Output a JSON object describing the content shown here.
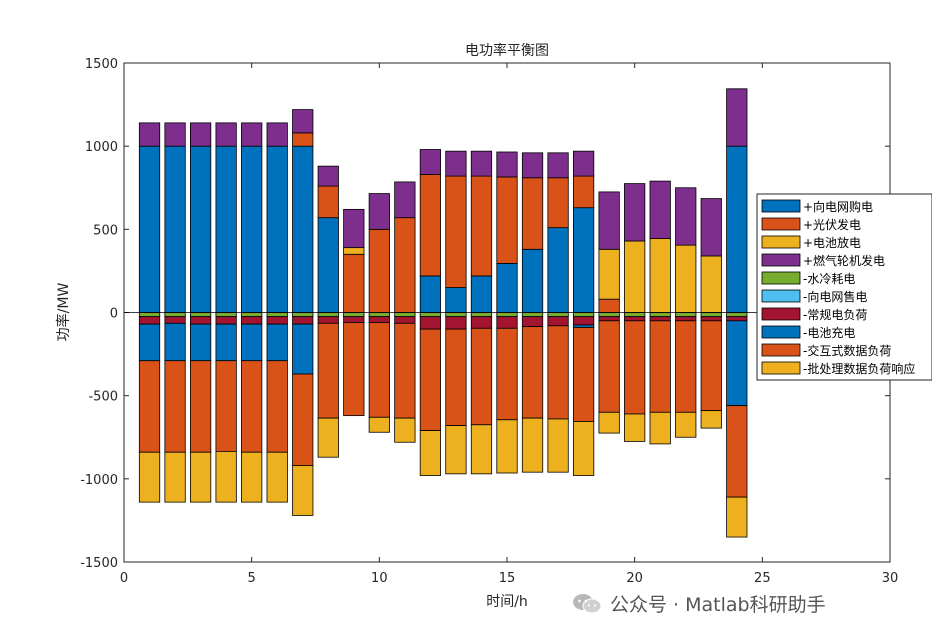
{
  "chart_data": {
    "type": "bar",
    "stacked": true,
    "title": "电功率平衡图",
    "xlabel": "时间/h",
    "ylabel": "功率/MW",
    "xlim": [
      0,
      30
    ],
    "ylim": [
      -1500,
      1500
    ],
    "xticks": [
      0,
      5,
      10,
      15,
      20,
      25,
      30
    ],
    "yticks": [
      -1500,
      -1000,
      -500,
      0,
      500,
      1000,
      1500
    ],
    "x": [
      1,
      2,
      3,
      4,
      5,
      6,
      7,
      8,
      9,
      10,
      11,
      12,
      13,
      14,
      15,
      16,
      17,
      18,
      19,
      20,
      21,
      22,
      23,
      24
    ],
    "legend_position": "right",
    "series": [
      {
        "name": "+向电网购电",
        "color": "#0072BD",
        "values": [
          1000,
          1000,
          1000,
          1000,
          1000,
          1000,
          1000,
          570,
          0,
          0,
          0,
          220,
          150,
          220,
          295,
          380,
          510,
          630,
          0,
          0,
          0,
          0,
          0,
          1000
        ]
      },
      {
        "name": "+光伏发电",
        "color": "#D95319",
        "values": [
          0,
          0,
          0,
          0,
          0,
          0,
          80,
          190,
          350,
          500,
          570,
          610,
          670,
          600,
          520,
          430,
          300,
          190,
          80,
          0,
          0,
          0,
          0,
          0
        ]
      },
      {
        "name": "+电池放电",
        "color": "#EDB120",
        "values": [
          0,
          0,
          0,
          0,
          0,
          0,
          0,
          0,
          40,
          0,
          0,
          0,
          0,
          0,
          0,
          0,
          0,
          0,
          300,
          430,
          445,
          405,
          340,
          0
        ]
      },
      {
        "name": "+燃气轮机发电",
        "color": "#7E2F8E",
        "values": [
          140,
          140,
          140,
          140,
          140,
          140,
          140,
          120,
          230,
          215,
          215,
          150,
          150,
          150,
          150,
          150,
          150,
          150,
          345,
          345,
          345,
          345,
          345,
          345
        ]
      },
      {
        "name": "-水冷耗电",
        "color": "#77AC30",
        "values": [
          -25,
          -25,
          -25,
          -25,
          -25,
          -25,
          -25,
          -25,
          -25,
          -25,
          -25,
          -25,
          -25,
          -25,
          -25,
          -25,
          -25,
          -25,
          -25,
          -25,
          -25,
          -25,
          -25,
          -25
        ]
      },
      {
        "name": "-向电网售电",
        "color": "#4DBEEE",
        "values": [
          0,
          0,
          0,
          0,
          0,
          0,
          0,
          0,
          0,
          0,
          0,
          0,
          0,
          0,
          0,
          0,
          0,
          0,
          0,
          0,
          0,
          0,
          0,
          0
        ]
      },
      {
        "name": "-常规电负荷",
        "color": "#A2142F",
        "values": [
          -45,
          -40,
          -45,
          -45,
          -45,
          -45,
          -45,
          -40,
          -35,
          -35,
          -40,
          -75,
          -75,
          -70,
          -70,
          -60,
          -55,
          -50,
          -25,
          -25,
          -25,
          -25,
          -25,
          -25
        ]
      },
      {
        "name": "-电池充电",
        "color": "#0072BD",
        "values": [
          -220,
          -225,
          -220,
          -220,
          -220,
          -220,
          -300,
          0,
          0,
          0,
          0,
          0,
          0,
          0,
          0,
          0,
          0,
          -15,
          0,
          0,
          0,
          0,
          0,
          -510
        ]
      },
      {
        "name": "-交互式数据负荷",
        "color": "#D95319",
        "values": [
          -550,
          -550,
          -550,
          -545,
          -550,
          -550,
          -550,
          -570,
          -560,
          -570,
          -570,
          -610,
          -580,
          -580,
          -550,
          -550,
          -560,
          -565,
          -550,
          -560,
          -550,
          -550,
          -540,
          -550
        ]
      },
      {
        "name": "-批处理数据负荷响应",
        "color": "#EDB120",
        "values": [
          -300,
          -300,
          -300,
          -305,
          -300,
          -300,
          -300,
          -235,
          0,
          -90,
          -145,
          -270,
          -290,
          -295,
          -320,
          -325,
          -320,
          -325,
          -125,
          -165,
          -190,
          -150,
          -105,
          -240
        ]
      }
    ]
  },
  "watermark": {
    "text": "公众号 · Matlab科研助手",
    "icon": "wechat-icon"
  }
}
